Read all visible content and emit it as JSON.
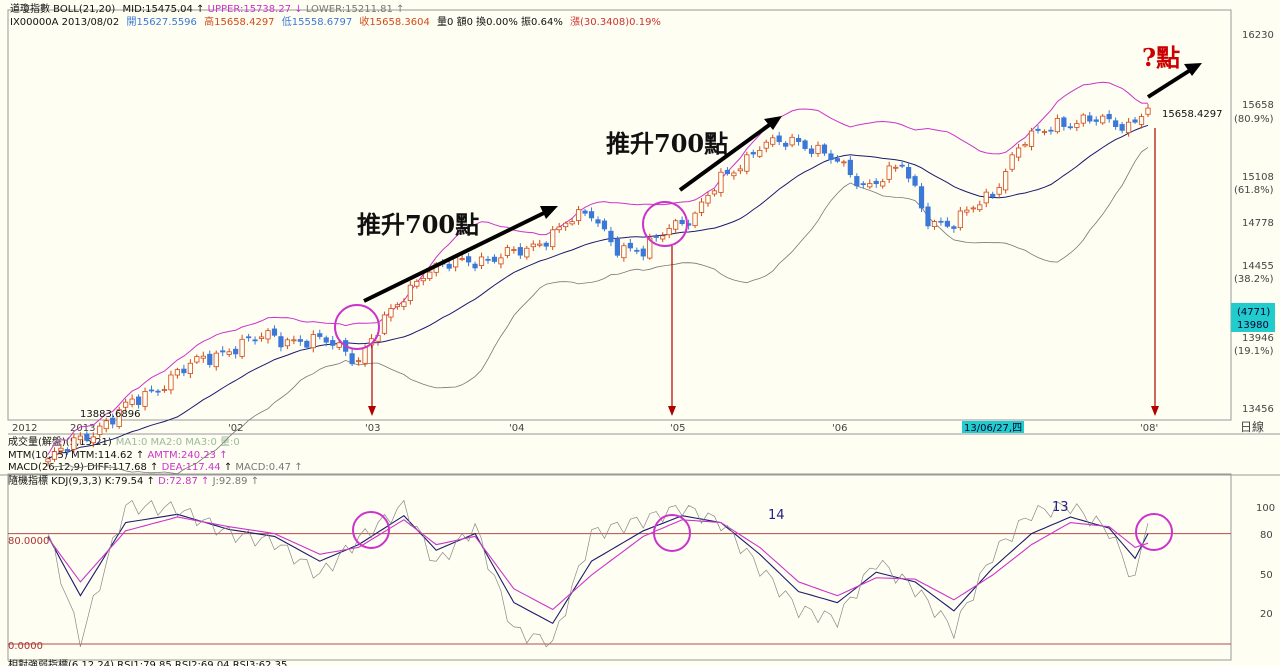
{
  "header": {
    "indicator": "道瓊指數 BOLL(21,20)",
    "mid_label": "MID:",
    "mid": "15475.04",
    "upper_label": "UPPER:",
    "upper": "15738.27",
    "lower_label": "LOWER:",
    "lower": "15211.81",
    "line2_symbol": "IX00000A 2013/08/02",
    "open": "開15627.5596",
    "high": "高15658.4297",
    "low": "低15558.6797",
    "close": "收15658.3604",
    "volume_info": "量0 額0 換0.00% 振0.64%",
    "change": "漲(30.3408)0.19%"
  },
  "price_axis": {
    "ticks": [
      "16230",
      "15658",
      "15108",
      "14778",
      "14455",
      "13946",
      "13456"
    ],
    "pcts": [
      "(80.9%)",
      "(61.8%)",
      "(38.2%)",
      "(19.1%)"
    ],
    "cursor_volume": "(4771)",
    "cursor_price": "13980"
  },
  "date_axis": {
    "labels": [
      "2012",
      "2013",
      "'02",
      "'03",
      "'04",
      "'05",
      "'06",
      "'08'"
    ],
    "highlight": "13/06/27,四",
    "right_label": "日線"
  },
  "annotations": {
    "push_1": "推升700點",
    "push_2": "推升700點",
    "question": "?點",
    "last_price": "15658.4297",
    "low_mark": "13883.6896",
    "kdj_14": "14",
    "kdj_13": "13",
    "kdj_80": "80.0000",
    "kdj_0": "0.0000"
  },
  "sub_panels": {
    "volume": "成交量(解盤)(5,15,21)",
    "volume_ma": "MA1:0 MA2:0 MA3:0 量:0",
    "mtm": "MTM(10,25) MTM:114.62",
    "amtm": "AMTM:240.23",
    "macd": "MACD(26,12,9) DIFF:117.68",
    "dea": "DEA:117.44",
    "macd_val": "MACD:0.47",
    "kdj": "隨機指標 KDJ(9,3,3) K:79.54",
    "kdj_d": "D:72.87",
    "kdj_j": "J:92.89",
    "rsi": "相對強弱指標(6,12,24) RSI1:79.85 RSI2:69.04 RSI3:62.35"
  },
  "kdj_axis": {
    "ticks": [
      "100",
      "80",
      "50",
      "20"
    ]
  },
  "colors": {
    "up": "#d24a1a",
    "down": "#3b78d8",
    "boll_upper": "#cc33cc",
    "boll_mid": "#1a1a6e",
    "boll_lower": "#777777",
    "circle": "#cc33cc",
    "arrow_red": "#b00000",
    "question": "#cc0000"
  },
  "chart_data": [
    {
      "type": "candlestick",
      "title": "道瓊指數 BOLL(21,20)",
      "ylim": [
        13400,
        16350
      ],
      "y_ticks": [
        16230,
        15658,
        15108,
        14778,
        14455,
        13946,
        13456
      ],
      "x_labels": [
        "2012",
        "2013",
        "'02",
        "'03",
        "'04",
        "'05",
        "'06",
        "'08'"
      ],
      "anchors": [
        {
          "i": 0,
          "v": 13090
        },
        {
          "i": 10,
          "v": 13390
        },
        {
          "i": 20,
          "v": 13700
        },
        {
          "i": 28,
          "v": 13870
        },
        {
          "i": 34,
          "v": 13950
        },
        {
          "i": 40,
          "v": 13920
        },
        {
          "i": 44,
          "v": 13900
        },
        {
          "i": 48,
          "v": 13800
        },
        {
          "i": 52,
          "v": 14050
        },
        {
          "i": 58,
          "v": 14420
        },
        {
          "i": 66,
          "v": 14500
        },
        {
          "i": 74,
          "v": 14560
        },
        {
          "i": 80,
          "v": 14780
        },
        {
          "i": 84,
          "v": 14830
        },
        {
          "i": 88,
          "v": 14600
        },
        {
          "i": 92,
          "v": 14540
        },
        {
          "i": 96,
          "v": 14760
        },
        {
          "i": 100,
          "v": 14820
        },
        {
          "i": 104,
          "v": 15100
        },
        {
          "i": 110,
          "v": 15350
        },
        {
          "i": 116,
          "v": 15400
        },
        {
          "i": 120,
          "v": 15300
        },
        {
          "i": 126,
          "v": 15050
        },
        {
          "i": 132,
          "v": 15200
        },
        {
          "i": 136,
          "v": 14800
        },
        {
          "i": 140,
          "v": 14760
        },
        {
          "i": 146,
          "v": 15000
        },
        {
          "i": 150,
          "v": 15350
        },
        {
          "i": 156,
          "v": 15540
        },
        {
          "i": 162,
          "v": 15550
        },
        {
          "i": 167,
          "v": 15520
        },
        {
          "i": 170,
          "v": 15658
        }
      ],
      "marker_circles_at_index": [
        48,
        96,
        170
      ]
    },
    {
      "type": "line",
      "title": "隨機指標 KDJ(9,3,3)",
      "ylim": [
        0,
        110
      ],
      "reference_lines": [
        80,
        0
      ],
      "series": [
        {
          "name": "K",
          "anchors": [
            [
              0,
              78
            ],
            [
              5,
              35
            ],
            [
              12,
              88
            ],
            [
              20,
              94
            ],
            [
              28,
              83
            ],
            [
              35,
              78
            ],
            [
              42,
              60
            ],
            [
              48,
              72
            ],
            [
              55,
              93
            ],
            [
              60,
              68
            ],
            [
              66,
              80
            ],
            [
              72,
              30
            ],
            [
              78,
              15
            ],
            [
              84,
              60
            ],
            [
              92,
              82
            ],
            [
              98,
              93
            ],
            [
              104,
              88
            ],
            [
              110,
              65
            ],
            [
              116,
              38
            ],
            [
              122,
              30
            ],
            [
              128,
              52
            ],
            [
              134,
              45
            ],
            [
              140,
              24
            ],
            [
              146,
              55
            ],
            [
              152,
              80
            ],
            [
              158,
              92
            ],
            [
              164,
              84
            ],
            [
              168,
              62
            ],
            [
              170,
              80
            ]
          ]
        },
        {
          "name": "D",
          "anchors": [
            [
              0,
              77
            ],
            [
              5,
              45
            ],
            [
              12,
              82
            ],
            [
              20,
              92
            ],
            [
              28,
              85
            ],
            [
              35,
              80
            ],
            [
              42,
              65
            ],
            [
              48,
              70
            ],
            [
              55,
              90
            ],
            [
              60,
              72
            ],
            [
              66,
              78
            ],
            [
              72,
              40
            ],
            [
              78,
              25
            ],
            [
              84,
              50
            ],
            [
              92,
              78
            ],
            [
              98,
              90
            ],
            [
              104,
              88
            ],
            [
              110,
              70
            ],
            [
              116,
              45
            ],
            [
              122,
              35
            ],
            [
              128,
              48
            ],
            [
              134,
              47
            ],
            [
              140,
              32
            ],
            [
              146,
              50
            ],
            [
              152,
              72
            ],
            [
              158,
              88
            ],
            [
              164,
              85
            ],
            [
              168,
              70
            ],
            [
              170,
              73
            ]
          ]
        },
        {
          "name": "J",
          "anchors": [
            [
              0,
              80
            ],
            [
              5,
              2
            ],
            [
              12,
              100
            ],
            [
              20,
              98
            ],
            [
              28,
              80
            ],
            [
              35,
              74
            ],
            [
              42,
              50
            ],
            [
              48,
              76
            ],
            [
              55,
              100
            ],
            [
              60,
              58
            ],
            [
              66,
              85
            ],
            [
              72,
              10
            ],
            [
              78,
              0
            ],
            [
              84,
              80
            ],
            [
              92,
              90
            ],
            [
              98,
              99
            ],
            [
              104,
              88
            ],
            [
              110,
              55
            ],
            [
              116,
              25
            ],
            [
              122,
              18
            ],
            [
              128,
              60
            ],
            [
              134,
              40
            ],
            [
              140,
              10
            ],
            [
              146,
              65
            ],
            [
              152,
              95
            ],
            [
              158,
              100
            ],
            [
              164,
              82
            ],
            [
              168,
              45
            ],
            [
              170,
              93
            ]
          ]
        }
      ]
    }
  ]
}
